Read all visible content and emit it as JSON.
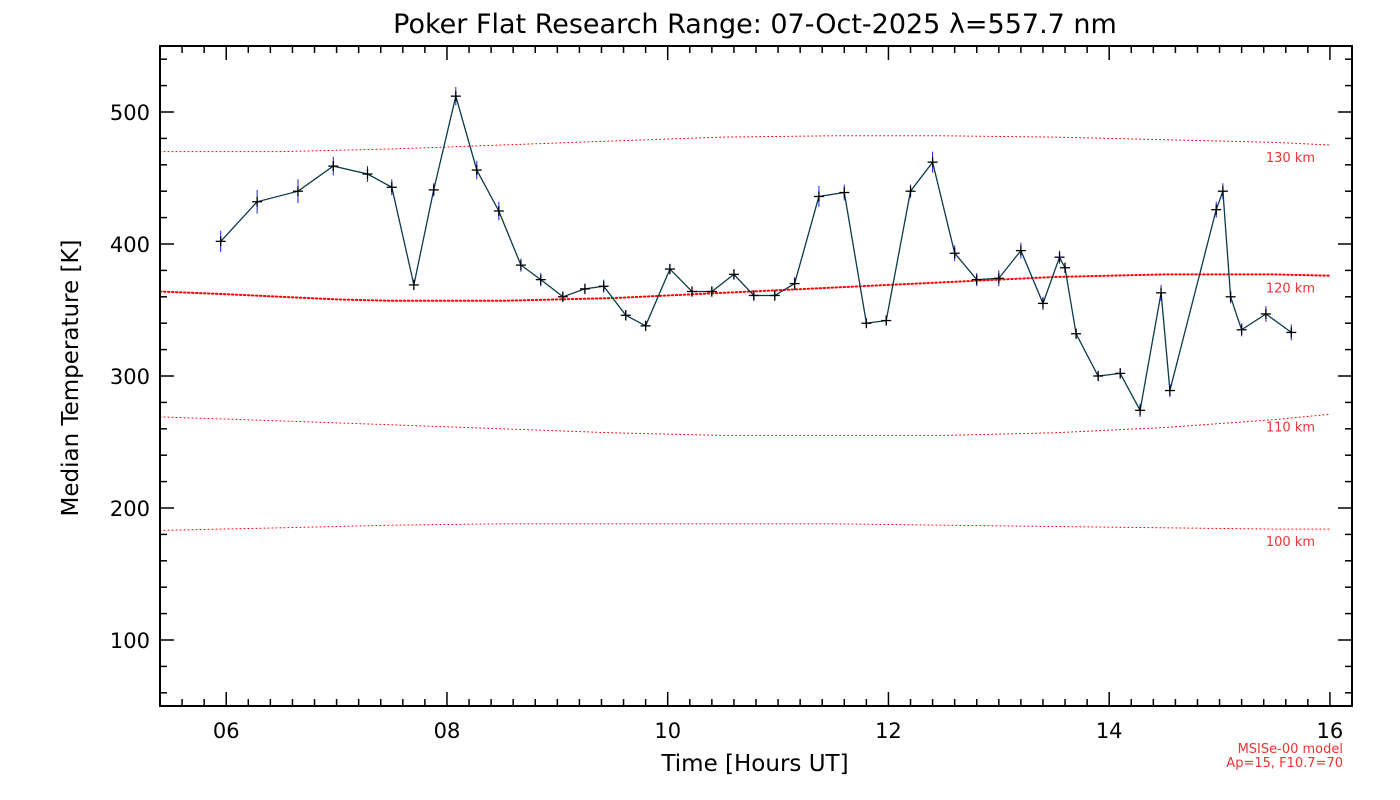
{
  "chart_data": {
    "type": "line",
    "title": "Poker Flat Research Range: 07-Oct-2025 λ=557.7 nm",
    "xlabel": "Time [Hours UT]",
    "ylabel": "Median Temperature [K]",
    "xlim": [
      5.4,
      16.2
    ],
    "ylim": [
      50,
      550
    ],
    "xticks": [
      6,
      8,
      10,
      12,
      14,
      16
    ],
    "xtick_labels": [
      "06",
      "08",
      "10",
      "12",
      "14",
      "16"
    ],
    "yticks": [
      100,
      200,
      300,
      400,
      500
    ],
    "ytick_labels": [
      "100",
      "200",
      "300",
      "400",
      "500"
    ],
    "series": [
      {
        "name": "Median Temperature",
        "color": "#000000",
        "errorbar_color": "#1a1aff",
        "x": [
          5.95,
          6.28,
          6.65,
          6.97,
          7.28,
          7.5,
          7.7,
          7.88,
          8.08,
          8.27,
          8.47,
          8.67,
          8.85,
          9.05,
          9.25,
          9.42,
          9.62,
          9.8,
          10.02,
          10.22,
          10.4,
          10.6,
          10.78,
          10.97,
          11.15,
          11.37,
          11.6,
          11.8,
          11.98,
          12.2,
          12.4,
          12.6,
          12.8,
          13.0,
          13.2,
          13.4,
          13.55,
          13.6,
          13.7,
          13.9,
          14.1,
          14.28,
          14.47,
          14.55,
          14.97,
          15.03,
          15.1,
          15.2,
          15.42,
          15.65
        ],
        "y": [
          402,
          432,
          440,
          459,
          453,
          443,
          369,
          441,
          512,
          456,
          425,
          384,
          373,
          360,
          366,
          368,
          346,
          338,
          381,
          364,
          364,
          377,
          361,
          361,
          370,
          436,
          439,
          340,
          342,
          440,
          462,
          393,
          373,
          374,
          395,
          355,
          390,
          382,
          332,
          300,
          302,
          274,
          363,
          289,
          426,
          440,
          360,
          335,
          347,
          333
        ],
        "err": [
          8,
          9,
          9,
          7,
          6,
          6,
          4,
          5,
          7,
          7,
          7,
          5,
          5,
          4,
          4,
          5,
          4,
          4,
          4,
          4,
          4,
          4,
          4,
          4,
          5,
          8,
          6,
          3,
          3,
          5,
          8,
          6,
          5,
          6,
          6,
          5,
          5,
          4,
          4,
          4,
          4,
          5,
          6,
          5,
          6,
          6,
          5,
          5,
          6,
          6
        ]
      }
    ],
    "model_curves": {
      "color": "#ff0000",
      "curves": [
        {
          "label": "130 km",
          "x": [
            5.4,
            6.5,
            7.5,
            8.5,
            9.5,
            10.5,
            11.5,
            12.5,
            13.5,
            14.5,
            15.5,
            16.0
          ],
          "y": [
            470,
            470,
            472,
            475,
            478,
            481,
            482,
            482,
            481,
            479,
            477,
            475
          ]
        },
        {
          "label": "120 km",
          "x": [
            5.4,
            6.0,
            6.5,
            7.0,
            7.5,
            8.0,
            8.5,
            9.0,
            9.5,
            10.0,
            10.5,
            11.0,
            11.5,
            12.0,
            12.5,
            13.0,
            13.5,
            14.0,
            14.5,
            15.0,
            15.5,
            16.0
          ],
          "y": [
            364,
            362,
            360,
            358,
            357,
            357,
            357,
            358,
            359,
            361,
            363,
            365,
            367,
            369,
            371,
            373,
            375,
            376,
            377,
            377,
            377,
            376
          ]
        },
        {
          "label": "110 km",
          "x": [
            5.4,
            6.5,
            7.5,
            8.5,
            9.5,
            10.5,
            11.5,
            12.5,
            13.5,
            14.5,
            15.5,
            16.0
          ],
          "y": [
            269,
            266,
            263,
            260,
            257,
            255,
            255,
            255,
            257,
            261,
            267,
            271
          ]
        },
        {
          "label": "100 km",
          "x": [
            5.4,
            6.5,
            7.5,
            8.5,
            9.5,
            10.5,
            11.5,
            12.5,
            13.5,
            14.5,
            15.5,
            16.0
          ],
          "y": [
            183,
            185,
            187,
            188,
            188,
            188,
            188,
            187,
            186,
            185,
            184,
            184
          ]
        }
      ]
    },
    "model_note": [
      "MSISe-00 model",
      "Ap=15, F10.7=70"
    ]
  }
}
